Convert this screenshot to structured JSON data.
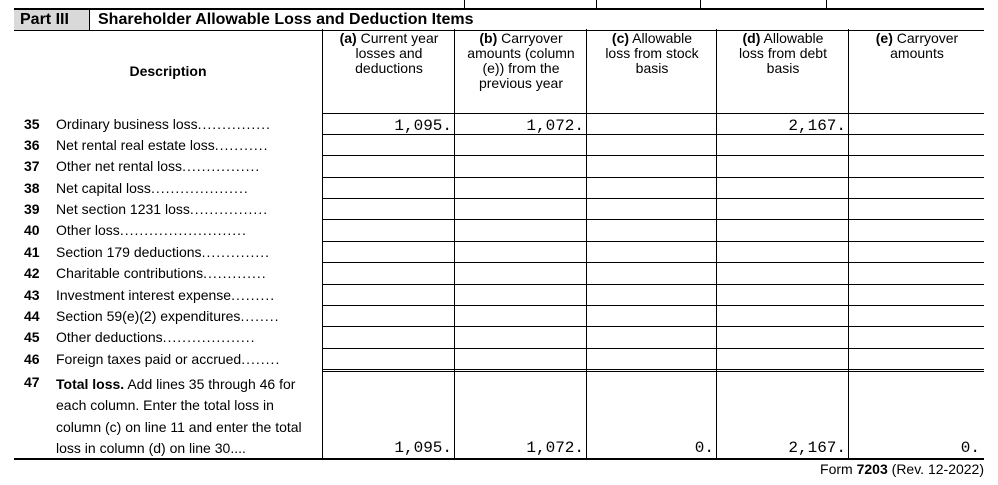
{
  "part": {
    "label": "Part III",
    "title": "Shareholder Allowable Loss and Deduction Items"
  },
  "columns": {
    "description": "Description",
    "a": {
      "letter": "(a)",
      "text": "Current year losses and deductions"
    },
    "b": {
      "letter": "(b)",
      "text": "Carryover amounts (column (e)) from the previous year"
    },
    "c": {
      "letter": "(c)",
      "text": "Allowable loss from stock basis"
    },
    "d": {
      "letter": "(d)",
      "text": "Allowable loss from debt basis"
    },
    "e": {
      "letter": "(e)",
      "text": "Carryover amounts"
    }
  },
  "lines": [
    {
      "num": "35",
      "text": "Ordinary business loss",
      "dots": "...............",
      "a": "1,095.",
      "b": "1,072.",
      "c": "",
      "d": "2,167.",
      "e": ""
    },
    {
      "num": "36",
      "text": "Net rental real estate loss",
      "dots": "...........",
      "a": "",
      "b": "",
      "c": "",
      "d": "",
      "e": ""
    },
    {
      "num": "37",
      "text": "Other net rental loss",
      "dots": "................",
      "a": "",
      "b": "",
      "c": "",
      "d": "",
      "e": ""
    },
    {
      "num": "38",
      "text": "Net capital loss",
      "dots": "....................",
      "a": "",
      "b": "",
      "c": "",
      "d": "",
      "e": ""
    },
    {
      "num": "39",
      "text": "Net section 1231 loss",
      "dots": "................",
      "a": "",
      "b": "",
      "c": "",
      "d": "",
      "e": ""
    },
    {
      "num": "40",
      "text": "Other loss",
      "dots": "..........................",
      "a": "",
      "b": "",
      "c": "",
      "d": "",
      "e": ""
    },
    {
      "num": "41",
      "text": "Section 179 deductions",
      "dots": "..............",
      "a": "",
      "b": "",
      "c": "",
      "d": "",
      "e": ""
    },
    {
      "num": "42",
      "text": "Charitable contributions",
      "dots": ".............",
      "a": "",
      "b": "",
      "c": "",
      "d": "",
      "e": ""
    },
    {
      "num": "43",
      "text": "Investment interest expense",
      "dots": ".........",
      "a": "",
      "b": "",
      "c": "",
      "d": "",
      "e": ""
    },
    {
      "num": "44",
      "text": "Section 59(e)(2) expenditures",
      "dots": "........",
      "a": "",
      "b": "",
      "c": "",
      "d": "",
      "e": ""
    },
    {
      "num": "45",
      "text": "Other deductions",
      "dots": "...................",
      "a": "",
      "b": "",
      "c": "",
      "d": "",
      "e": ""
    },
    {
      "num": "46",
      "text": "Foreign taxes paid or accrued",
      "dots": "........",
      "a": "",
      "b": "",
      "c": "",
      "d": "",
      "e": ""
    }
  ],
  "total": {
    "num": "47",
    "bold": "Total loss.",
    "text": "Add lines 35 through 46 for each column. Enter the total loss in column (c) on line 11 and enter the total loss in column (d) on line 30",
    "dots": "....",
    "a": "1,095.",
    "b": "1,072.",
    "c": "0.",
    "d": "2,167.",
    "e": "0."
  },
  "footer": {
    "form_prefix": "Form",
    "form_number": "7203",
    "revision": "(Rev. 12-2022)"
  }
}
